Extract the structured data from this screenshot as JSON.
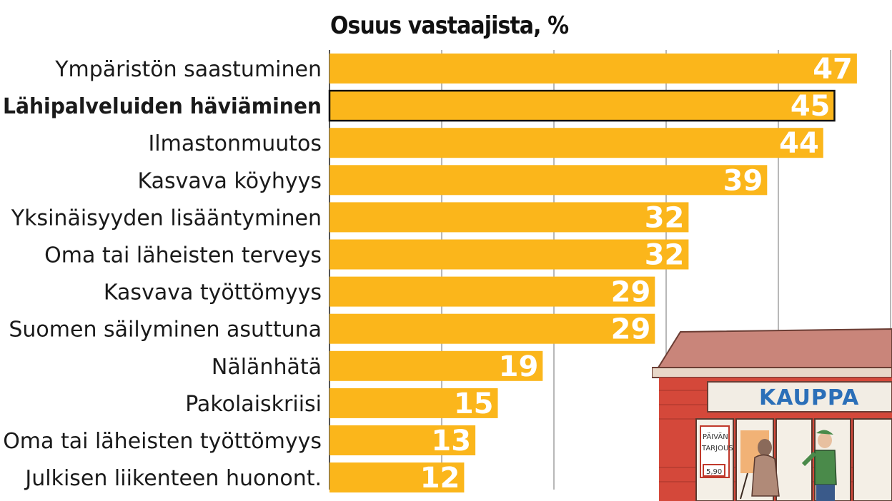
{
  "chart_data": {
    "type": "bar",
    "orientation": "horizontal",
    "title": "Osuus vastaajista, %",
    "categories": [
      "Ympäristön saastuminen",
      "Lähipalveluiden häviäminen",
      "Ilmastonmuutos",
      "Kasvava köyhyys",
      "Yksinäisyyden lisääntyminen",
      "Oma tai läheisten terveys",
      "Kasvava työttömyys",
      "Suomen säilyminen asuttuna",
      "Nälänhätä",
      "Pakolaiskriisi",
      "Oma tai läheisten työttömyys",
      "Julkisen liikenteen huonont."
    ],
    "values": [
      47,
      45,
      44,
      39,
      32,
      32,
      29,
      29,
      19,
      15,
      13,
      12
    ],
    "highlighted_category": "Lähipalveluiden häviäminen",
    "xlim": [
      0,
      50
    ],
    "grid": true,
    "bar_color": "#fbb61b",
    "value_label_color": "#ffffff"
  },
  "illustration": {
    "sign": "KAUPPA",
    "poster_line1": "PÄIVÄN",
    "poster_line2": "TARJOUS",
    "price": "5,90"
  }
}
